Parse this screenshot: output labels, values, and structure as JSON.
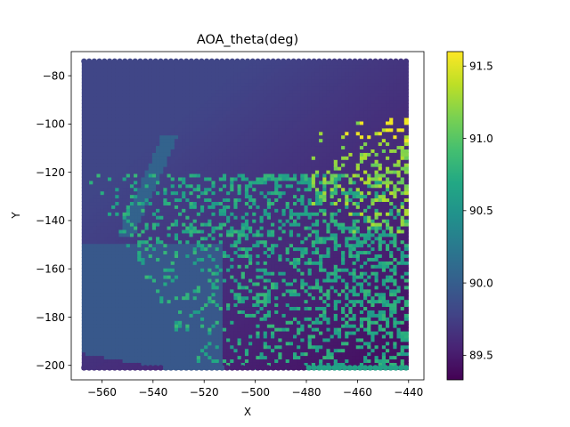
{
  "chart_data": {
    "type": "heatmap",
    "title": "AOA_theta(deg)",
    "xlabel": "X",
    "ylabel": "Y",
    "xlim": [
      -572,
      -434
    ],
    "ylim": [
      -206,
      -70
    ],
    "x_ticks": [
      -560,
      -540,
      -520,
      -500,
      -480,
      -460,
      -440
    ],
    "y_ticks": [
      -200,
      -180,
      -160,
      -140,
      -120,
      -100,
      -80
    ],
    "data_extent": {
      "x": [
        -567,
        -440
      ],
      "y": [
        -201,
        -74
      ]
    },
    "colorbar": {
      "range": [
        89.33,
        91.6
      ],
      "ticks": [
        89.5,
        90.0,
        90.5,
        91.0,
        91.5
      ],
      "colormap": "viridis"
    },
    "values": {
      "background_top_right": 89.4,
      "background_general": 89.8,
      "ridge": 90.05,
      "bottom_left_band": 89.95,
      "scattered_cells": 90.7,
      "upper_right_cluster": 91.2,
      "hot_spots": 91.55
    }
  }
}
